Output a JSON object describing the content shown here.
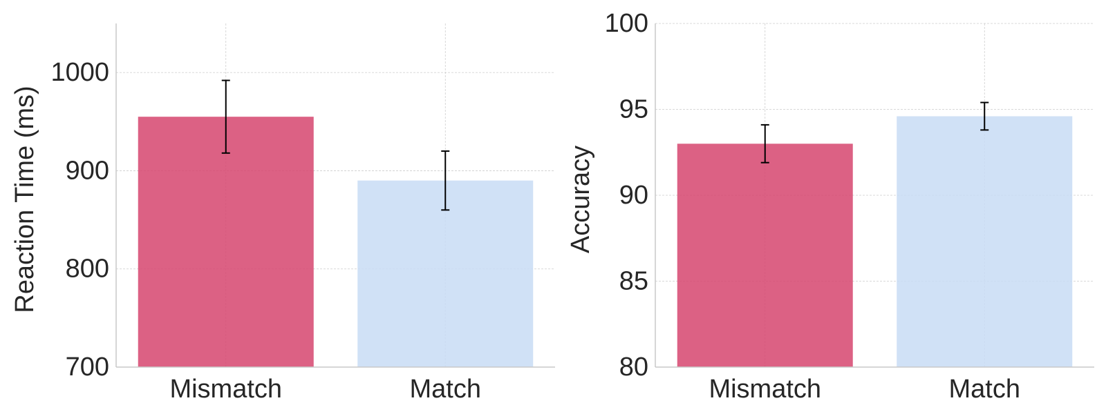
{
  "chart_data": [
    {
      "type": "bar",
      "categories": [
        "Mismatch",
        "Match"
      ],
      "values": [
        955,
        890
      ],
      "errors": [
        37,
        30
      ],
      "colors": [
        "#d6456e",
        "#c8dcf5"
      ],
      "title": "",
      "xlabel": "",
      "ylabel": "Reaction Time (ms)",
      "ylim": [
        700,
        1050
      ],
      "yticks": [
        700,
        800,
        900,
        1000
      ],
      "ytick_labels": [
        "700",
        "800",
        "900",
        "1000"
      ],
      "grid": true
    },
    {
      "type": "bar",
      "categories": [
        "Mismatch",
        "Match"
      ],
      "values": [
        93.0,
        94.6
      ],
      "errors": [
        1.1,
        0.8
      ],
      "colors": [
        "#d6456e",
        "#c8dcf5"
      ],
      "title": "",
      "xlabel": "",
      "ylabel": "Accuracy",
      "ylim": [
        80,
        100
      ],
      "yticks": [
        80,
        85,
        90,
        95,
        100
      ],
      "ytick_labels": [
        "80",
        "85",
        "90",
        "95",
        "100"
      ],
      "grid": true
    }
  ]
}
